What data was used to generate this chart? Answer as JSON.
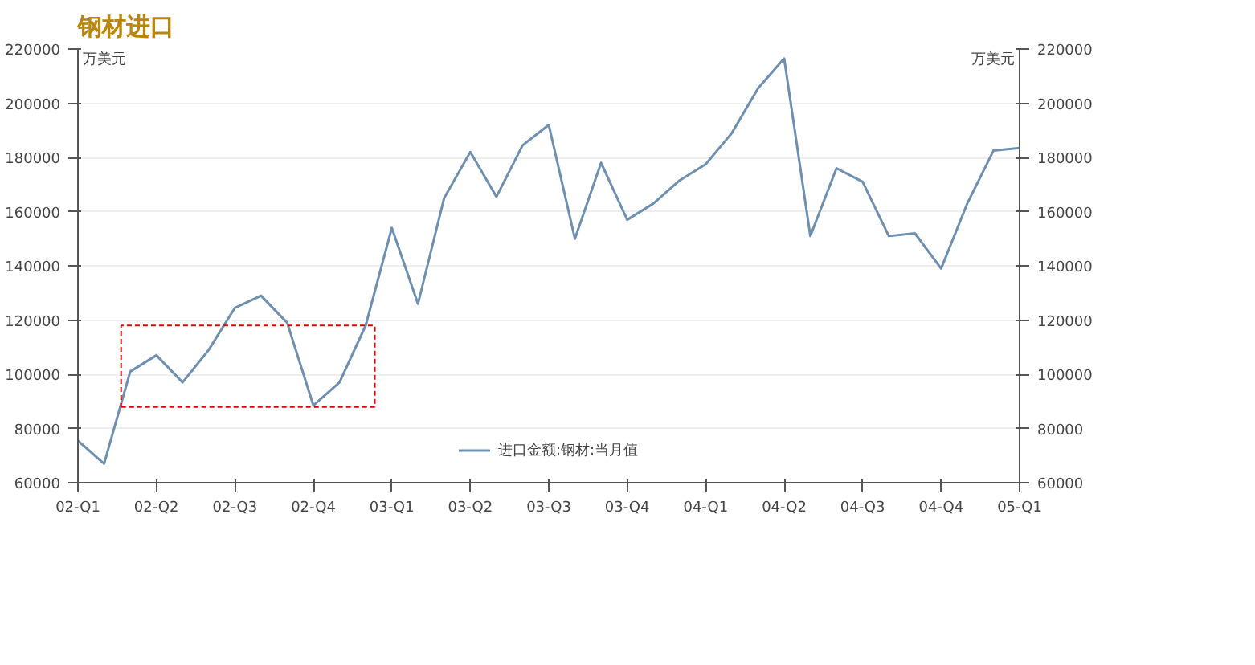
{
  "chart_data": {
    "type": "line",
    "title": "钢材进口",
    "ylabel": "万美元",
    "y2label": "万美元",
    "categories": [
      "02-Q1",
      null,
      null,
      "02-Q2",
      null,
      null,
      "02-Q3",
      null,
      null,
      "02-Q4",
      null,
      null,
      "03-Q1",
      null,
      null,
      "03-Q2",
      null,
      null,
      "03-Q3",
      null,
      null,
      "03-Q4",
      null,
      null,
      "04-Q1",
      null,
      null,
      "04-Q2",
      null,
      null,
      "04-Q3",
      null,
      null,
      "04-Q4",
      null,
      null,
      "05-Q1"
    ],
    "series": [
      {
        "name": "进口金额:钢材:当月值",
        "color": "#6f8fae",
        "values": [
          75500,
          67000,
          101000,
          107000,
          97000,
          109000,
          124500,
          129000,
          119000,
          88500,
          97000,
          118000,
          154000,
          126000,
          165000,
          182000,
          165500,
          184500,
          192000,
          150000,
          178000,
          157000,
          163000,
          171500,
          177500,
          189000,
          205500,
          216500,
          151000,
          176000,
          171000,
          151000,
          152000,
          139000,
          163000,
          182500,
          183500
        ]
      }
    ],
    "ylim": [
      60000,
      220000
    ],
    "yticks": [
      60000,
      80000,
      100000,
      120000,
      140000,
      160000,
      180000,
      200000,
      220000
    ],
    "y2lim": [
      60000,
      220000
    ],
    "y2ticks": [
      60000,
      80000,
      100000,
      120000,
      140000,
      160000,
      180000,
      200000,
      220000
    ],
    "grid": "y",
    "legend": "bottom",
    "marker": "none",
    "line_style": "solid"
  }
}
